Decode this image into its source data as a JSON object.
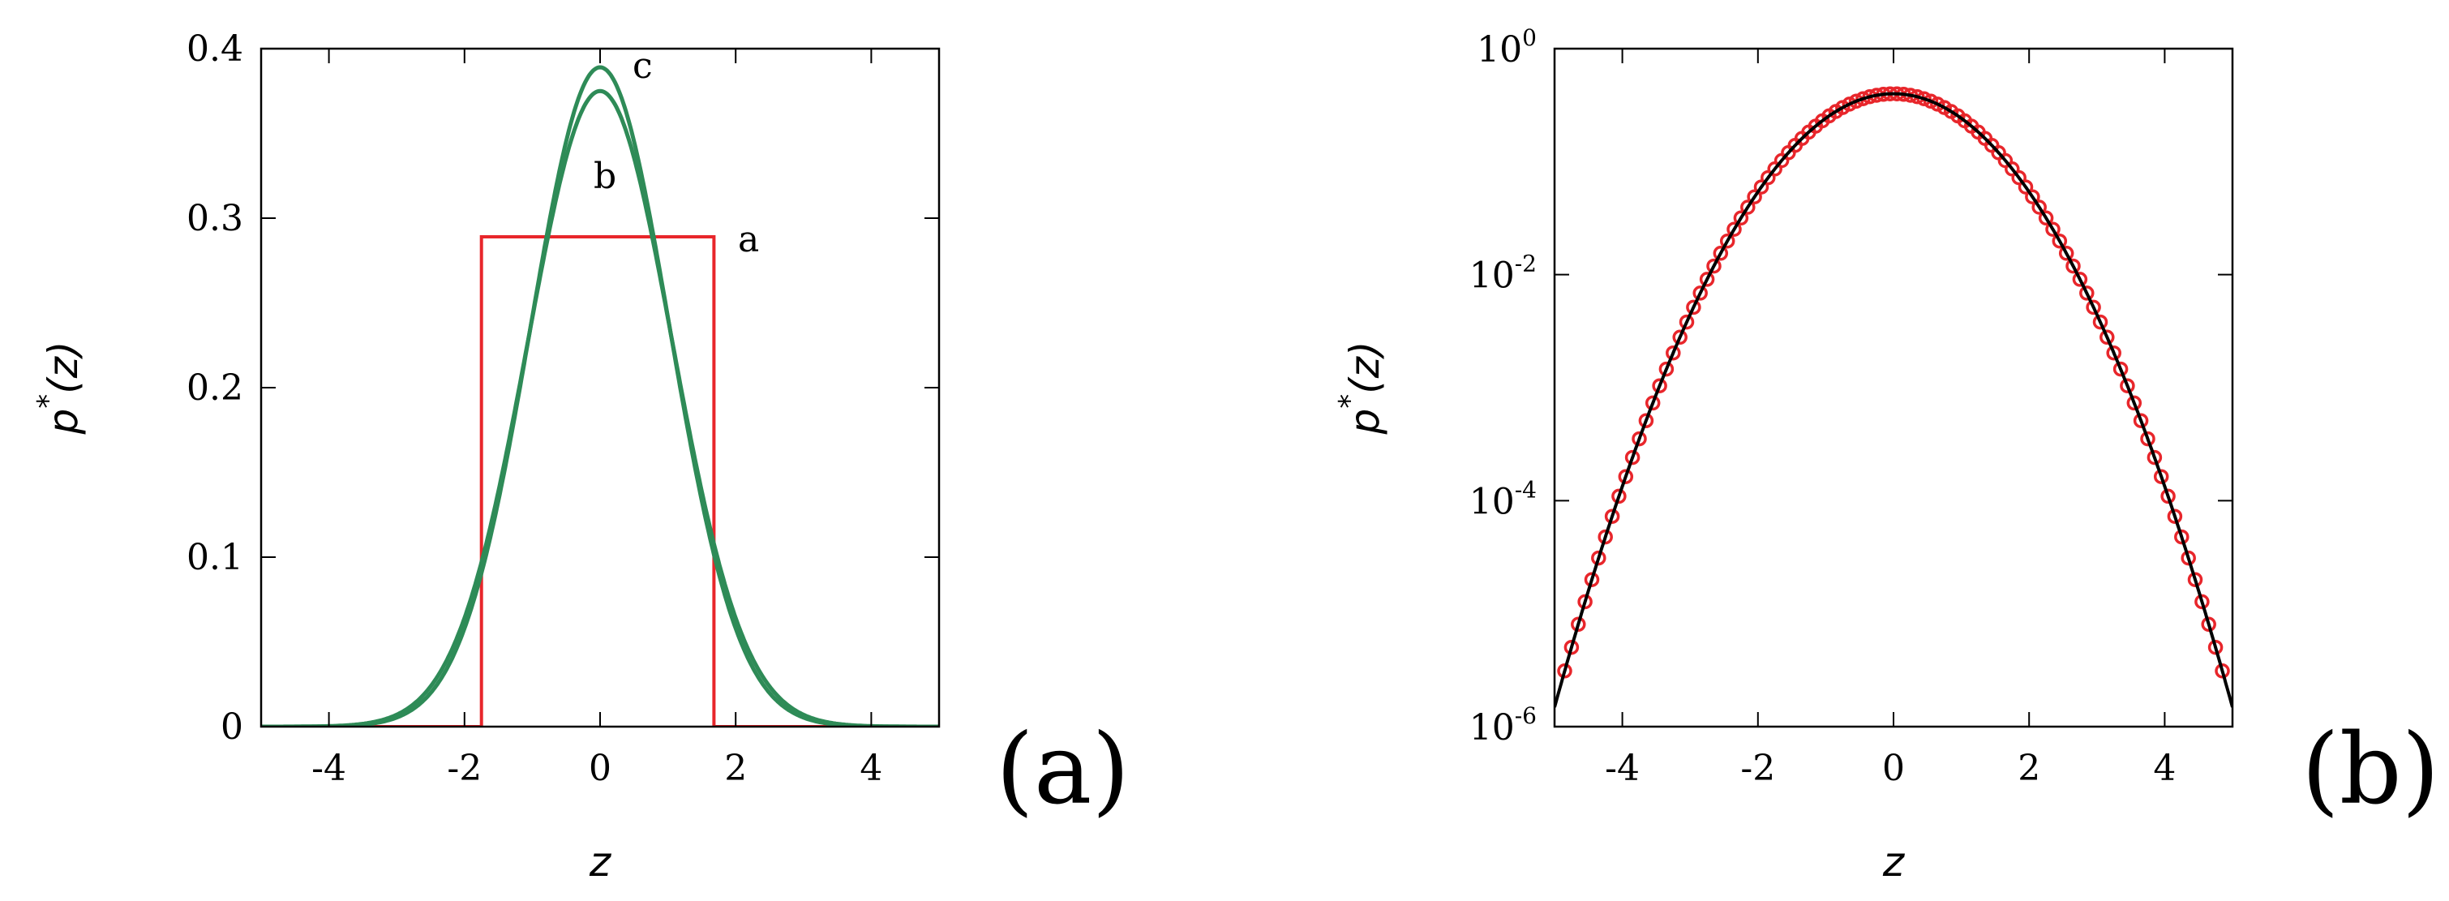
{
  "chart_data": [
    {
      "type": "line",
      "panel_label": "(a)",
      "xlabel": "z",
      "ylabel_base": "p",
      "ylabel_sup": "*",
      "ylabel_arg": "(z)",
      "xlim": [
        -5,
        5
      ],
      "ylim": [
        0,
        0.4
      ],
      "xticks": [
        -4,
        -2,
        0,
        2,
        4
      ],
      "xtick_labels": [
        "-4",
        "-2",
        "0",
        "2",
        "4"
      ],
      "yticks": [
        0,
        0.1,
        0.2,
        0.3,
        0.4
      ],
      "ytick_labels": [
        "0",
        "0.1",
        "0.2",
        "0.3",
        "0.4"
      ],
      "grid": false,
      "series": [
        {
          "label": "a",
          "color": "#e8262b",
          "kind": "uniform",
          "x": [
            -5,
            -1.75,
            -1.75,
            1.68,
            1.68,
            5
          ],
          "y": [
            0,
            0,
            0.289,
            0.289,
            0,
            0
          ]
        },
        {
          "label": "b",
          "color": "#2e8b57",
          "kind": "gaussian",
          "mean": 0,
          "peak": 0.375,
          "sigma": 1.064
        },
        {
          "label": "c",
          "color": "#2e8b57",
          "kind": "gaussian",
          "mean": 0,
          "peak": 0.389,
          "sigma": 1.025
        }
      ]
    },
    {
      "type": "line",
      "panel_label": "(b)",
      "xlabel": "z",
      "ylabel_base": "p",
      "ylabel_sup": "*",
      "ylabel_arg": "(z)",
      "xlim": [
        -5,
        5
      ],
      "ylim": [
        1e-06,
        1
      ],
      "yscale": "log",
      "xticks": [
        -4,
        -2,
        0,
        2,
        4
      ],
      "xtick_labels": [
        "-4",
        "-2",
        "0",
        "2",
        "4"
      ],
      "yticks": [
        1e-06,
        0.0001,
        0.01,
        1
      ],
      "ytick_bases": [
        "10",
        "10",
        "10",
        "10"
      ],
      "ytick_exps": [
        "-6",
        "-4",
        "-2",
        "0"
      ],
      "grid": false,
      "series": [
        {
          "color": "#e8262b",
          "kind": "gaussian-markers",
          "marker": "circle",
          "mean": 0,
          "peak": 0.399,
          "sigma": 1.0,
          "x_from": -4.85,
          "x_to": 4.85,
          "x_step": 0.1
        },
        {
          "color": "#000000",
          "kind": "gaussian",
          "mean": 0,
          "peak": 0.3989,
          "sigma": 1.0
        }
      ]
    }
  ]
}
